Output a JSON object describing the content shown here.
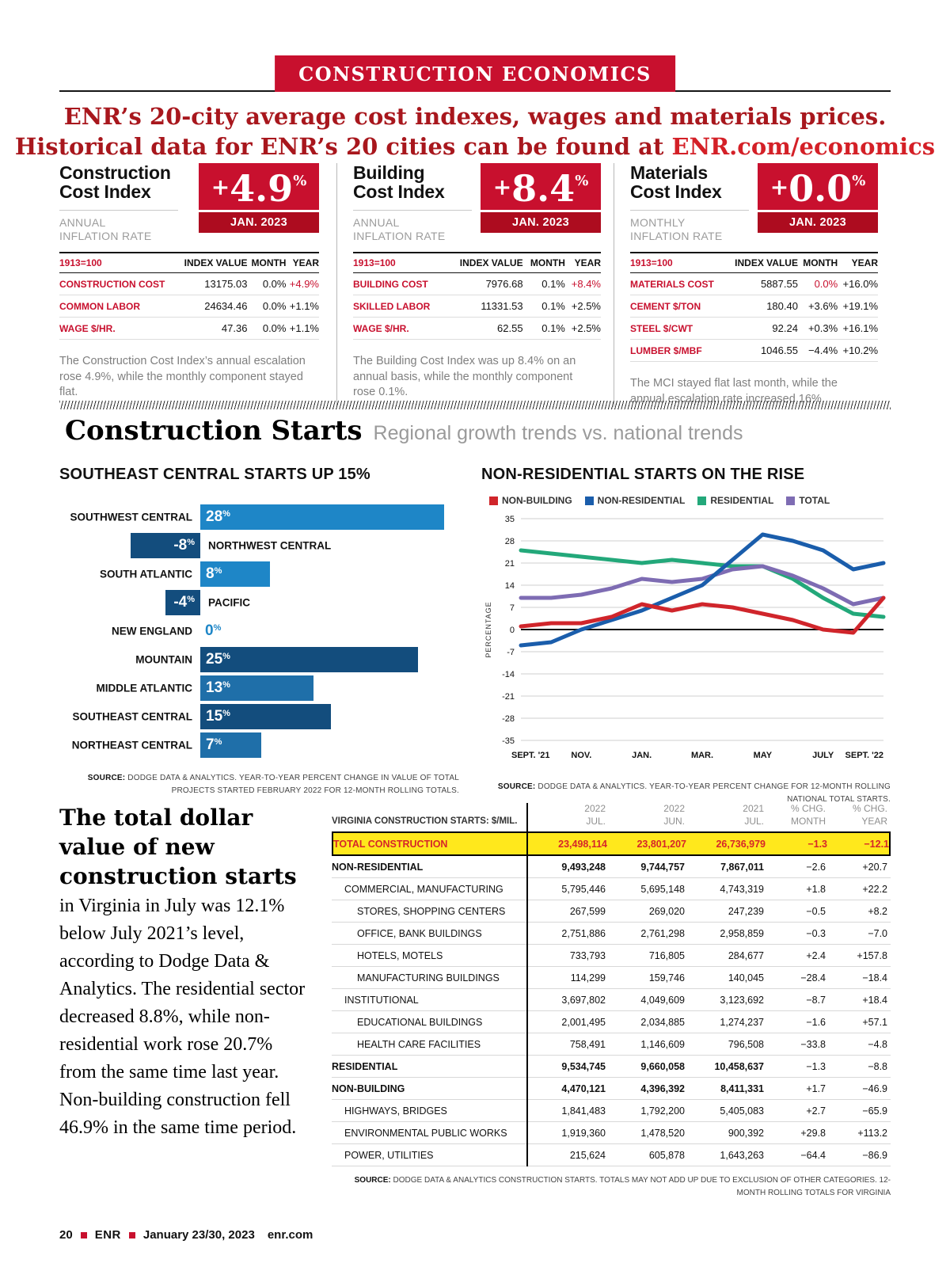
{
  "banner": {
    "title": "CONSTRUCTION ECONOMICS"
  },
  "headline": {
    "line1": "ENR’s 20-city average cost indexes, wages and materials prices.",
    "line2_prefix": "Historical data for ENR’s 20 cities can be found at ",
    "link": "ENR.com/economics"
  },
  "colors": {
    "brand_red": "#c8102e",
    "date_band_red": "#ad0c1f",
    "highlight_yellow": "#ffe81c",
    "bar_blue_light": "#1e86c7",
    "bar_blue_mid": "#1f6fa9",
    "bar_blue_dark": "#134d7d",
    "line_red": "#d0252b",
    "line_blue": "#1a5dab",
    "line_green": "#23a87a",
    "line_purple": "#7e6cb3"
  },
  "index_boxes": [
    {
      "id": "construction-cost-index",
      "title": [
        "Construction",
        "Cost Index"
      ],
      "rate_label": [
        "ANNUAL",
        "INFLATION RATE"
      ],
      "value_sign": "+",
      "value_number": "4.9",
      "percent_sign": "%",
      "date": "JAN. 2023",
      "table": {
        "base": "1913=100",
        "cols": [
          "INDEX VALUE",
          "MONTH",
          "YEAR"
        ],
        "rows": [
          {
            "label": "CONSTRUCTION COST",
            "value": "13175.03",
            "month": "0.0%",
            "year": "+4.9%",
            "hl": "year"
          },
          {
            "label": "COMMON LABOR",
            "value": "24634.46",
            "month": "0.0%",
            "year": "+1.1%"
          },
          {
            "label": "WAGE $/HR.",
            "value": "47.36",
            "month": "0.0%",
            "year": "+1.1%"
          }
        ]
      },
      "note": "The Construction Cost Index’s annual escalation rose 4.9%, while the monthly component stayed flat."
    },
    {
      "id": "building-cost-index",
      "title": [
        "Building",
        "Cost Index"
      ],
      "rate_label": [
        "ANNUAL",
        "INFLATION RATE"
      ],
      "value_sign": "+",
      "value_number": "8.4",
      "percent_sign": "%",
      "date": "JAN. 2023",
      "table": {
        "base": "1913=100",
        "cols": [
          "INDEX VALUE",
          "MONTH",
          "YEAR"
        ],
        "rows": [
          {
            "label": "BUILDING COST",
            "value": "7976.68",
            "month": "0.1%",
            "year": "+8.4%",
            "hl": "year"
          },
          {
            "label": "SKILLED LABOR",
            "value": "11331.53",
            "month": "0.1%",
            "year": "+2.5%"
          },
          {
            "label": "WAGE $/HR.",
            "value": "62.55",
            "month": "0.1%",
            "year": "+2.5%"
          }
        ]
      },
      "note": "The Building Cost Index was up 8.4% on an annual basis, while the monthly component rose 0.1%."
    },
    {
      "id": "materials-cost-index",
      "title": [
        "Materials",
        "Cost Index"
      ],
      "rate_label": [
        "MONTHLY",
        "INFLATION RATE"
      ],
      "value_sign": "+",
      "value_number": "0.0",
      "percent_sign": "%",
      "date": "JAN. 2023",
      "table": {
        "base": "1913=100",
        "cols": [
          "INDEX VALUE",
          "MONTH",
          "YEAR"
        ],
        "rows": [
          {
            "label": "MATERIALS COST",
            "value": "5887.55",
            "month": "0.0%",
            "year": "+16.0%",
            "hl": "month"
          },
          {
            "label": "CEMENT $/TON",
            "value": "180.40",
            "month": "+3.6%",
            "year": "+19.1%"
          },
          {
            "label": "STEEL $/CWT",
            "value": "92.24",
            "month": "+0.3%",
            "year": "+16.1%"
          },
          {
            "label": "LUMBER $/MBF",
            "value": "1046.55",
            "month": "−4.4%",
            "year": "+10.2%"
          }
        ]
      },
      "note": "The MCI stayed flat last month, while the annual escalation rate increased 16%."
    }
  ],
  "starts_section": {
    "title": "Construction Starts",
    "subtitle": "Regional growth trends vs. national trends"
  },
  "chart_data": [
    {
      "type": "bar",
      "orientation": "horizontal",
      "title": "SOUTHEAST CENTRAL STARTS UP 15%",
      "unit": "%",
      "categories": [
        "SOUTHWEST CENTRAL",
        "NORTHWEST CENTRAL",
        "SOUTH ATLANTIC",
        "PACIFIC",
        "NEW ENGLAND",
        "MOUNTAIN",
        "MIDDLE ATLANTIC",
        "SOUTHEAST CENTRAL",
        "NORTHEAST CENTRAL"
      ],
      "values": [
        28,
        -8,
        8,
        -4,
        0,
        25,
        13,
        15,
        7
      ],
      "bar_colors": [
        "#1e86c7",
        "#134d7d",
        "#1e86c7",
        "#134d7d",
        "#1e86c7",
        "#134d7d",
        "#1f6fa9",
        "#134d7d",
        "#1f6fa9"
      ],
      "source_bold": "SOURCE:",
      "source": " DODGE DATA & ANALYTICS. YEAR-TO-YEAR PERCENT CHANGE IN VALUE OF TOTAL PROJECTS STARTED FEBRUARY 2022 FOR 12-MONTH ROLLING TOTALS."
    },
    {
      "type": "line",
      "title": "NON-RESIDENTIAL STARTS ON THE RISE",
      "ylabel": "PERCENTAGE",
      "ylim": [
        -35,
        35
      ],
      "ytick_step": 7,
      "grid": true,
      "legend_position": "top",
      "x_labels": [
        "SEPT. '21",
        "NOV.",
        "JAN.",
        "MAR.",
        "MAY",
        "JULY",
        "SEPT. '22"
      ],
      "series": [
        {
          "name": "NON-BUILDING",
          "color": "#d0252b",
          "values": [
            1,
            2,
            2,
            4,
            8,
            6,
            8,
            7,
            5,
            3,
            0,
            -1,
            10
          ]
        },
        {
          "name": "NON-RESIDENTIAL",
          "color": "#1a5dab",
          "values": [
            -5,
            -4,
            0,
            3,
            6,
            10,
            14,
            22,
            30,
            28,
            25,
            19,
            21
          ]
        },
        {
          "name": "RESIDENTIAL",
          "color": "#23a87a",
          "values": [
            25,
            24,
            23,
            22,
            21,
            22,
            21,
            20,
            20,
            16,
            10,
            5,
            4
          ]
        },
        {
          "name": "TOTAL",
          "color": "#7e6cb3",
          "values": [
            10,
            10,
            11,
            13,
            16,
            15,
            16,
            19,
            20,
            17,
            13,
            8,
            10
          ]
        }
      ],
      "source_bold": "SOURCE:",
      "source": " DODGE DATA & ANALYTICS. YEAR-TO-YEAR PERCENT CHANGE FOR 12-MONTH ROLLING NATIONAL TOTAL STARTS."
    }
  ],
  "article": {
    "lead": "The total dollar value of new construction starts",
    "body": " in Virginia in July was 12.1% below July 2021’s level, according to Dodge Data & Analytics. The residential sector decreased 8.8%, while non-residential work rose 20.7% from the same time last year. Non-building construction fell 46.9% in the same time period."
  },
  "va_table": {
    "label_header": "VIRGINIA CONSTRUCTION STARTS: $/MIL.",
    "col_headers": [
      [
        "2022",
        "JUL."
      ],
      [
        "2022",
        "JUN."
      ],
      [
        "2021",
        "JUL."
      ],
      [
        "% CHG.",
        "MONTH"
      ],
      [
        "% CHG.",
        "YEAR"
      ]
    ],
    "rows": [
      {
        "label": "TOTAL CONSTRUCTION",
        "jul22": "23,498,114",
        "jun22": "23,801,207",
        "jul21": "26,736,979",
        "chg_month": "−1.3",
        "chg_year": "−12.1",
        "indent": 0,
        "style": "total"
      },
      {
        "label": "NON-RESIDENTIAL",
        "jul22": "9,493,248",
        "jun22": "9,744,757",
        "jul21": "7,867,011",
        "chg_month": "−2.6",
        "chg_year": "+20.7",
        "indent": 0,
        "style": "bold"
      },
      {
        "label": "COMMERCIAL, MANUFACTURING",
        "jul22": "5,795,446",
        "jun22": "5,695,148",
        "jul21": "4,743,319",
        "chg_month": "+1.8",
        "chg_year": "+22.2",
        "indent": 1,
        "style": ""
      },
      {
        "label": "STORES, SHOPPING CENTERS",
        "jul22": "267,599",
        "jun22": "269,020",
        "jul21": "247,239",
        "chg_month": "−0.5",
        "chg_year": "+8.2",
        "indent": 2,
        "style": ""
      },
      {
        "label": "OFFICE, BANK BUILDINGS",
        "jul22": "2,751,886",
        "jun22": "2,761,298",
        "jul21": "2,958,859",
        "chg_month": "−0.3",
        "chg_year": "−7.0",
        "indent": 2,
        "style": ""
      },
      {
        "label": "HOTELS, MOTELS",
        "jul22": "733,793",
        "jun22": "716,805",
        "jul21": "284,677",
        "chg_month": "+2.4",
        "chg_year": "+157.8",
        "indent": 2,
        "style": ""
      },
      {
        "label": "MANUFACTURING BUILDINGS",
        "jul22": "114,299",
        "jun22": "159,746",
        "jul21": "140,045",
        "chg_month": "−28.4",
        "chg_year": "−18.4",
        "indent": 2,
        "style": ""
      },
      {
        "label": "INSTITUTIONAL",
        "jul22": "3,697,802",
        "jun22": "4,049,609",
        "jul21": "3,123,692",
        "chg_month": "−8.7",
        "chg_year": "+18.4",
        "indent": 1,
        "style": ""
      },
      {
        "label": "EDUCATIONAL BUILDINGS",
        "jul22": "2,001,495",
        "jun22": "2,034,885",
        "jul21": "1,274,237",
        "chg_month": "−1.6",
        "chg_year": "+57.1",
        "indent": 2,
        "style": ""
      },
      {
        "label": "HEALTH CARE FACILITIES",
        "jul22": "758,491",
        "jun22": "1,146,609",
        "jul21": "796,508",
        "chg_month": "−33.8",
        "chg_year": "−4.8",
        "indent": 2,
        "style": ""
      },
      {
        "label": "RESIDENTIAL",
        "jul22": "9,534,745",
        "jun22": "9,660,058",
        "jul21": "10,458,637",
        "chg_month": "−1.3",
        "chg_year": "−8.8",
        "indent": 0,
        "style": "bold"
      },
      {
        "label": "NON-BUILDING",
        "jul22": "4,470,121",
        "jun22": "4,396,392",
        "jul21": "8,411,331",
        "chg_month": "+1.7",
        "chg_year": "−46.9",
        "indent": 0,
        "style": "bold"
      },
      {
        "label": "HIGHWAYS, BRIDGES",
        "jul22": "1,841,483",
        "jun22": "1,792,200",
        "jul21": "5,405,083",
        "chg_month": "+2.7",
        "chg_year": "−65.9",
        "indent": 1,
        "style": ""
      },
      {
        "label": "ENVIRONMENTAL PUBLIC WORKS",
        "jul22": "1,919,360",
        "jun22": "1,478,520",
        "jul21": "900,392",
        "chg_month": "+29.8",
        "chg_year": "+113.2",
        "indent": 1,
        "style": ""
      },
      {
        "label": "POWER, UTILITIES",
        "jul22": "215,624",
        "jun22": "605,878",
        "jul21": "1,643,263",
        "chg_month": "−64.4",
        "chg_year": "−86.9",
        "indent": 1,
        "style": ""
      }
    ],
    "source_bold": "SOURCE:",
    "source": " DODGE DATA & ANALYTICS CONSTRUCTION STARTS. TOTALS MAY NOT ADD UP DUE TO EXCLUSION OF OTHER CATEGORIES. 12-MONTH ROLLING TOTALS FOR VIRGINIA"
  },
  "footer": {
    "page": "20",
    "brand": "ENR",
    "date": "January 23/30, 2023",
    "site": "enr.com"
  }
}
